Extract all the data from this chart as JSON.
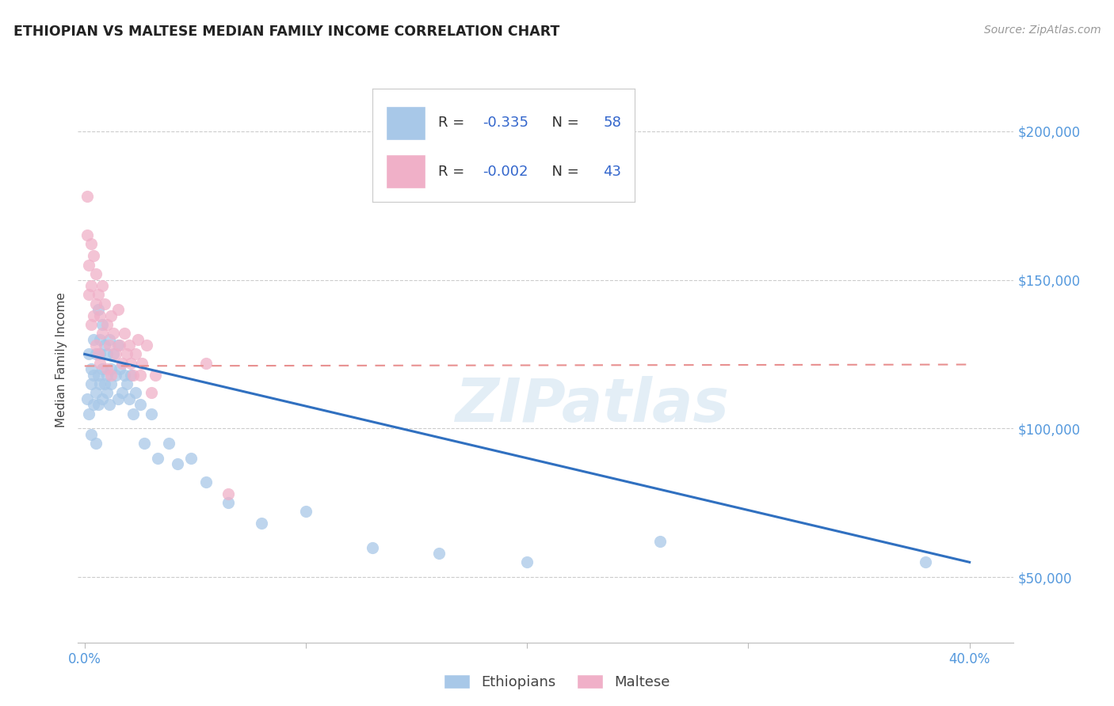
{
  "title": "ETHIOPIAN VS MALTESE MEDIAN FAMILY INCOME CORRELATION CHART",
  "source": "Source: ZipAtlas.com",
  "ylabel": "Median Family Income",
  "ytick_labels": [
    "$50,000",
    "$100,000",
    "$150,000",
    "$200,000"
  ],
  "ytick_values": [
    50000,
    100000,
    150000,
    200000
  ],
  "ylim": [
    28000,
    218000
  ],
  "xlim": [
    -0.003,
    0.42
  ],
  "legend_blue_r": "-0.335",
  "legend_blue_n": "58",
  "legend_pink_r": "-0.002",
  "legend_pink_n": "43",
  "blue_color": "#a8c8e8",
  "pink_color": "#f0b0c8",
  "line_blue_color": "#3070c0",
  "line_pink_color": "#e89090",
  "watermark": "ZIPatlas",
  "blue_line_x0": 0.0,
  "blue_line_y0": 125000,
  "blue_line_x1": 0.4,
  "blue_line_y1": 55000,
  "pink_line_x0": 0.0,
  "pink_line_y0": 121000,
  "pink_line_x1": 0.4,
  "pink_line_y1": 121500,
  "ethiopians_x": [
    0.001,
    0.002,
    0.002,
    0.003,
    0.003,
    0.003,
    0.004,
    0.004,
    0.004,
    0.005,
    0.005,
    0.005,
    0.006,
    0.006,
    0.006,
    0.007,
    0.007,
    0.007,
    0.008,
    0.008,
    0.008,
    0.009,
    0.009,
    0.01,
    0.01,
    0.01,
    0.011,
    0.011,
    0.012,
    0.012,
    0.013,
    0.014,
    0.015,
    0.015,
    0.016,
    0.017,
    0.018,
    0.019,
    0.02,
    0.021,
    0.022,
    0.023,
    0.025,
    0.027,
    0.03,
    0.033,
    0.038,
    0.042,
    0.048,
    0.055,
    0.065,
    0.08,
    0.1,
    0.13,
    0.16,
    0.2,
    0.26,
    0.38
  ],
  "ethiopians_y": [
    110000,
    125000,
    105000,
    120000,
    98000,
    115000,
    130000,
    108000,
    118000,
    95000,
    125000,
    112000,
    140000,
    118000,
    108000,
    130000,
    115000,
    125000,
    120000,
    110000,
    135000,
    115000,
    128000,
    125000,
    118000,
    112000,
    108000,
    130000,
    120000,
    115000,
    125000,
    118000,
    128000,
    110000,
    120000,
    112000,
    118000,
    115000,
    110000,
    118000,
    105000,
    112000,
    108000,
    95000,
    105000,
    90000,
    95000,
    88000,
    90000,
    82000,
    75000,
    68000,
    72000,
    60000,
    58000,
    55000,
    62000,
    55000
  ],
  "maltese_x": [
    0.001,
    0.001,
    0.002,
    0.002,
    0.003,
    0.003,
    0.003,
    0.004,
    0.004,
    0.005,
    0.005,
    0.005,
    0.006,
    0.006,
    0.007,
    0.007,
    0.008,
    0.008,
    0.009,
    0.01,
    0.01,
    0.011,
    0.012,
    0.012,
    0.013,
    0.014,
    0.015,
    0.016,
    0.017,
    0.018,
    0.019,
    0.02,
    0.021,
    0.022,
    0.023,
    0.024,
    0.025,
    0.026,
    0.028,
    0.03,
    0.032,
    0.055,
    0.065
  ],
  "maltese_y": [
    178000,
    165000,
    155000,
    145000,
    162000,
    148000,
    135000,
    158000,
    138000,
    152000,
    128000,
    142000,
    145000,
    125000,
    138000,
    122000,
    148000,
    132000,
    142000,
    135000,
    120000,
    128000,
    138000,
    118000,
    132000,
    125000,
    140000,
    128000,
    122000,
    132000,
    125000,
    128000,
    122000,
    118000,
    125000,
    130000,
    118000,
    122000,
    128000,
    112000,
    118000,
    122000,
    78000
  ]
}
